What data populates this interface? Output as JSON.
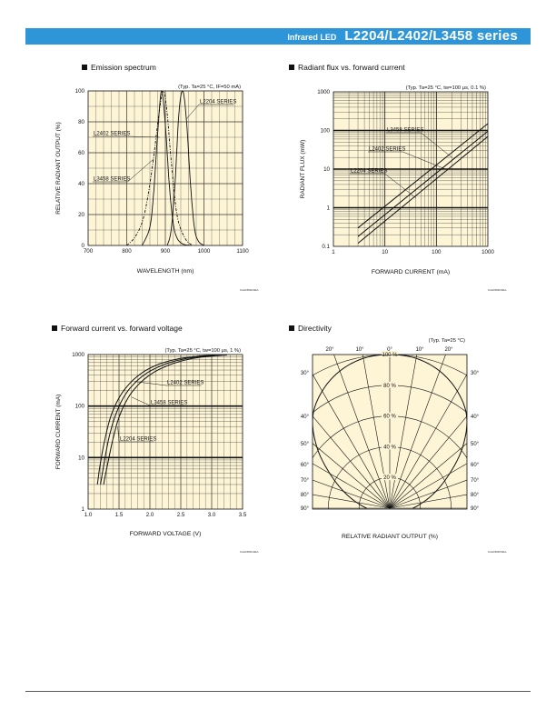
{
  "header": {
    "prefix": "Infrared LED",
    "title": "L2204/L2402/L3458 series",
    "color": "#2e96d8"
  },
  "sections": {
    "emission": "Emission spectrum",
    "flux": "Radiant flux vs. forward current",
    "fwd": "Forward current vs. forward voltage",
    "directivity": "Directivity"
  },
  "codes": {
    "c1": "KLEDB0020EA",
    "c2": "KLEDB0030EA",
    "c3": "KLEDB0040EA",
    "c4": "KLEDB0050EA"
  },
  "chart_data": [
    {
      "type": "line",
      "title": "Emission spectrum",
      "condition": "(Typ. Ta=25 °C, IF=50 mA)",
      "xlabel": "WAVELENGTH (nm)",
      "ylabel": "RELATIVE RADIANT OUTPUT (%)",
      "xlim": [
        700,
        1100
      ],
      "ylim": [
        0,
        100
      ],
      "xticks": [
        "700",
        "800",
        "900",
        "1000",
        "1100"
      ],
      "yticks": [
        "0",
        "20",
        "40",
        "60",
        "80",
        "100"
      ],
      "background": "#fdf5d6",
      "series": [
        {
          "name": "L2402 SERIES",
          "x": [
            840,
            860,
            870,
            880,
            890,
            900,
            910,
            920,
            930,
            945,
            965
          ],
          "y": [
            0,
            12,
            35,
            72,
            100,
            78,
            40,
            15,
            5,
            1,
            0
          ]
        },
        {
          "name": "L3458 SERIES",
          "x": [
            800,
            820,
            840,
            855,
            870,
            885,
            895,
            905,
            915,
            930,
            950,
            970
          ],
          "y": [
            0,
            5,
            15,
            32,
            58,
            88,
            100,
            85,
            55,
            20,
            5,
            0
          ]
        },
        {
          "name": "L2204 SERIES",
          "x": [
            905,
            915,
            925,
            935,
            945,
            955,
            965,
            975,
            985,
            1000
          ],
          "y": [
            0,
            10,
            40,
            85,
            100,
            80,
            40,
            12,
            3,
            0
          ]
        }
      ]
    },
    {
      "type": "line",
      "title": "Radiant flux vs. forward current",
      "condition": "(Typ. Ta=25 °C, tw=100 μs, 0.1 %)",
      "xlabel": "FORWARD CURRENT (mA)",
      "ylabel": "RADIANT FLUX (mW)",
      "xscale": "log",
      "yscale": "log",
      "xlim": [
        1,
        1000
      ],
      "ylim": [
        0.1,
        1000
      ],
      "xticks": [
        "1",
        "10",
        "100",
        "1000"
      ],
      "yticks": [
        "0.1",
        "1",
        "10",
        "100",
        "1000"
      ],
      "background": "#fdf5d6",
      "series": [
        {
          "name": "L3458 SERIES",
          "x": [
            3,
            1000
          ],
          "y": [
            0.3,
            150
          ]
        },
        {
          "name": "L2402 SERIES",
          "x": [
            3,
            1000
          ],
          "y": [
            0.18,
            95
          ]
        },
        {
          "name": "L2204 SERIES",
          "x": [
            3,
            1000
          ],
          "y": [
            0.12,
            70
          ]
        }
      ]
    },
    {
      "type": "line",
      "title": "Forward current vs. forward voltage",
      "condition": "(Typ. Ta=25 °C, tw=100 μs, 1 %)",
      "xlabel": "FORWARD VOLTAGE (V)",
      "ylabel": "FORWARD CURRENT (mA)",
      "yscale": "log",
      "xlim": [
        1.0,
        3.5
      ],
      "ylim": [
        1,
        1000
      ],
      "xticks": [
        "1.0",
        "1.5",
        "2.0",
        "2.5",
        "3.0",
        "3.5"
      ],
      "yticks": [
        "1",
        "10",
        "100",
        "1000"
      ],
      "background": "#fdf5d6",
      "series": [
        {
          "name": "L2402 SERIES",
          "x": [
            1.15,
            1.2,
            1.28,
            1.38,
            1.55,
            1.8,
            2.1,
            2.45,
            2.75,
            3.05
          ],
          "y": [
            3,
            8,
            25,
            70,
            180,
            380,
            620,
            820,
            920,
            980
          ]
        },
        {
          "name": "L3458 SERIES",
          "x": [
            1.2,
            1.26,
            1.34,
            1.45,
            1.62,
            1.88,
            2.2,
            2.55,
            2.85,
            3.15
          ],
          "y": [
            3,
            8,
            25,
            70,
            180,
            380,
            620,
            820,
            920,
            980
          ]
        },
        {
          "name": "L2204 SERIES",
          "x": [
            1.25,
            1.32,
            1.41,
            1.52,
            1.7,
            1.97,
            2.3,
            2.65,
            2.95,
            3.25
          ],
          "y": [
            3,
            8,
            25,
            70,
            180,
            380,
            620,
            820,
            920,
            980
          ]
        }
      ]
    },
    {
      "type": "polar",
      "title": "Directivity",
      "condition": "(Typ. Ta=25 °C)",
      "xlabel": "RELATIVE RADIANT OUTPUT (%)",
      "angle_labels_top": [
        "20°",
        "10°",
        "0°",
        "10°",
        "20°"
      ],
      "angle_labels_left": [
        "30°",
        "40°",
        "50°",
        "60°",
        "70°",
        "80°",
        "90°"
      ],
      "angle_labels_right": [
        "30°",
        "40°",
        "50°",
        "60°",
        "70°",
        "80°",
        "90°"
      ],
      "radial_labels": [
        "100 %",
        "80 %",
        "60 %",
        "40 %",
        "20 %"
      ],
      "background": "#fdf5d6",
      "series": [
        {
          "angle": [
            -90,
            -80,
            -70,
            -60,
            -50,
            -40,
            -30,
            -20,
            -10,
            0,
            10,
            20,
            30,
            40,
            50,
            60,
            70,
            80,
            90
          ],
          "value": [
            15,
            22,
            32,
            45,
            62,
            78,
            88,
            95,
            99,
            100,
            99,
            95,
            88,
            78,
            62,
            45,
            32,
            22,
            15
          ]
        }
      ]
    }
  ]
}
